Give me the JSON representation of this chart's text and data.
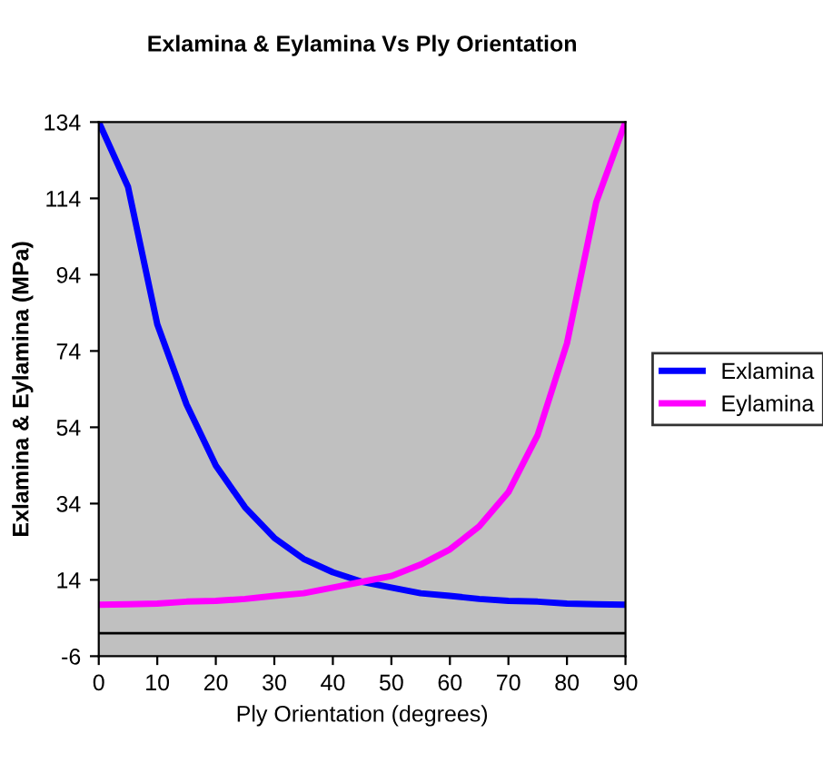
{
  "chart_data": {
    "type": "line",
    "title": "Exlamina & Eylamina Vs Ply Orientation",
    "xlabel": "Ply Orientation (degrees)",
    "ylabel": "Exlamina & Eylamina (MPa)",
    "x": [
      0,
      5,
      10,
      15,
      20,
      25,
      30,
      35,
      40,
      45,
      50,
      55,
      60,
      65,
      70,
      75,
      80,
      85,
      90
    ],
    "series": [
      {
        "name": "Exlamina",
        "color": "#0000ff",
        "values": [
          134,
          117,
          81,
          60,
          44,
          33,
          25,
          19.5,
          16,
          13.5,
          12,
          10.5,
          9.8,
          9,
          8.5,
          8.3,
          7.8,
          7.6,
          7.5
        ]
      },
      {
        "name": "Eylamina",
        "color": "#ff00ff",
        "values": [
          7.5,
          7.6,
          7.8,
          8.3,
          8.5,
          9,
          9.8,
          10.5,
          12,
          13.5,
          15,
          18,
          22,
          28,
          37,
          52,
          76,
          113,
          134
        ]
      }
    ],
    "xlim": [
      0,
      90
    ],
    "xticks": [
      0,
      10,
      20,
      30,
      40,
      50,
      60,
      70,
      80,
      90
    ],
    "ylim": [
      -6,
      134
    ],
    "yticks": [
      -6,
      14,
      34,
      54,
      74,
      94,
      114,
      134
    ],
    "ref_lines": [
      {
        "axis": "y",
        "value": 0,
        "color": "#000000"
      }
    ],
    "grid": false,
    "legend": "right",
    "marker": "none",
    "line_style": "solid"
  }
}
